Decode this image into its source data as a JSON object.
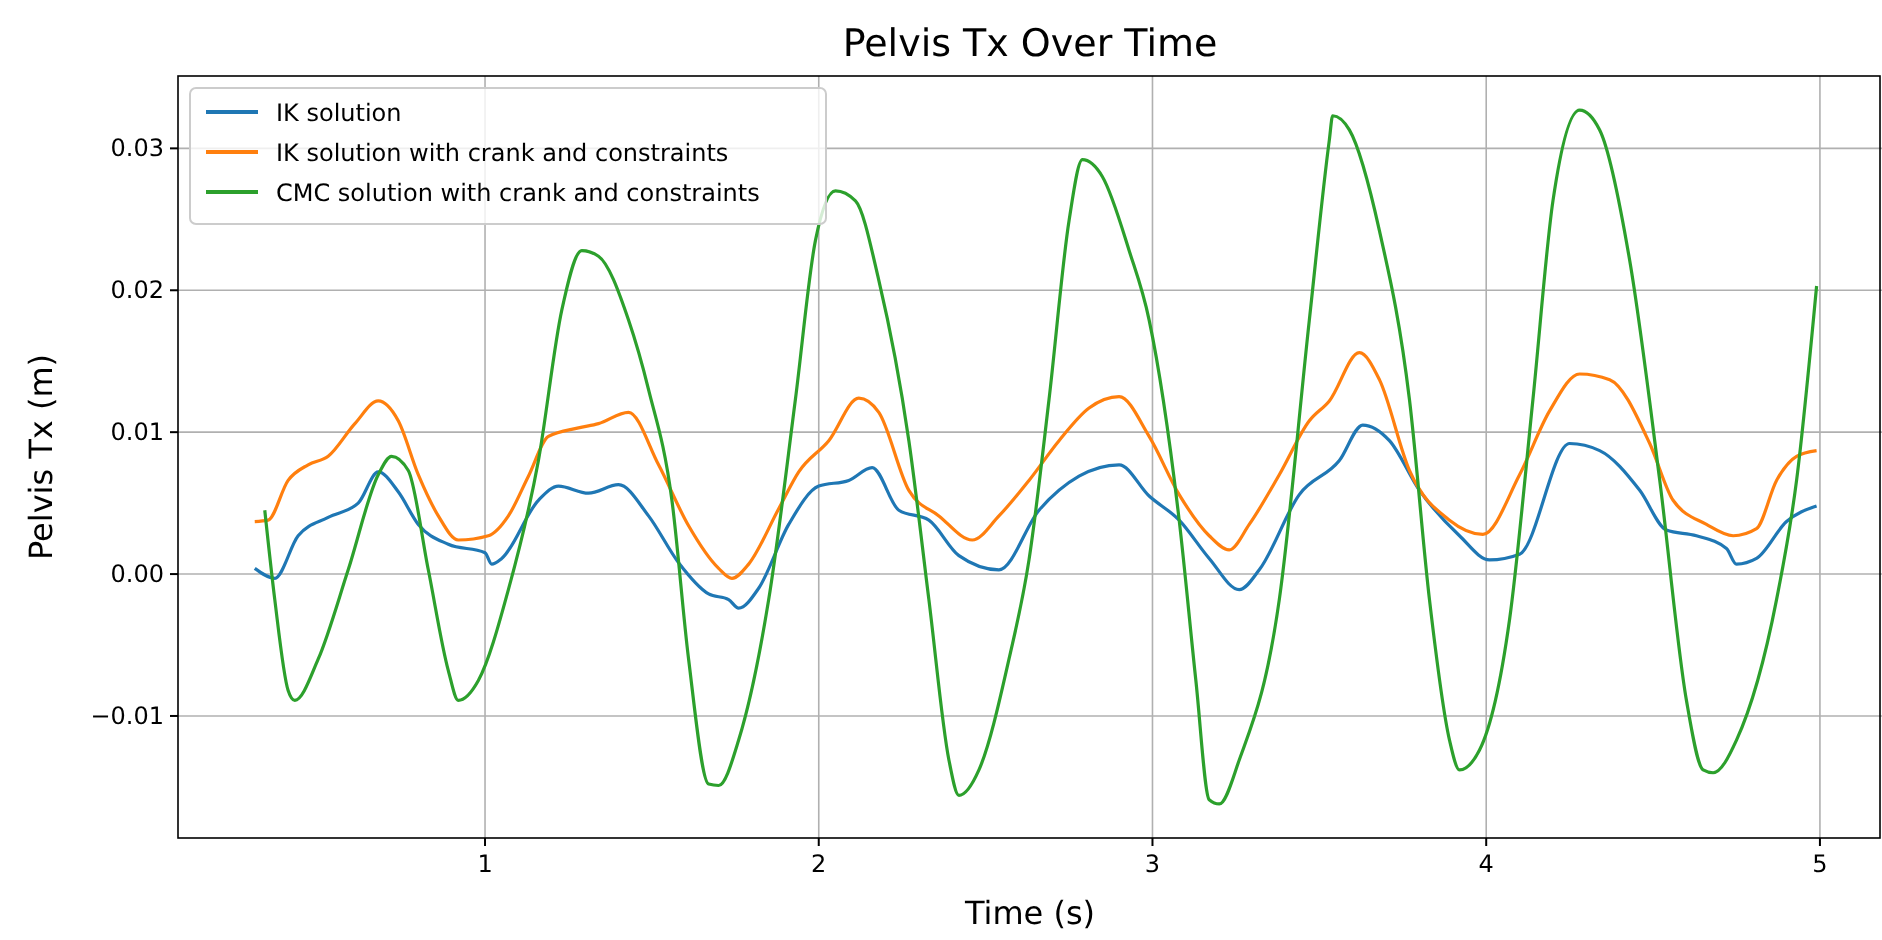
{
  "chart_data": {
    "type": "line",
    "title": "Pelvis Tx Over Time",
    "xlabel": "Time (s)",
    "ylabel": "Pelvis Tx (m)",
    "xlim": [
      0.08,
      5.18
    ],
    "ylim": [
      -0.0186,
      0.0351
    ],
    "xticks": [
      1,
      2,
      3,
      4,
      5
    ],
    "yticks": [
      {
        "value": -0.01,
        "label": "−0.01"
      },
      {
        "value": 0,
        "label": "0.00"
      },
      {
        "value": 0.01,
        "label": "0.01"
      },
      {
        "value": 0.02,
        "label": "0.02"
      },
      {
        "value": 0.03,
        "label": "0.03"
      }
    ],
    "grid": true,
    "legend": "top left",
    "line_style": "solid",
    "marker": "none",
    "series": [
      {
        "name": "IK solution",
        "color": "#1f77b4",
        "x": [
          0.31,
          0.37,
          0.44,
          0.53,
          0.62,
          0.68,
          0.74,
          0.8,
          0.89,
          1.0,
          1.02,
          1.05,
          1.16,
          1.22,
          1.31,
          1.4,
          1.49,
          1.58,
          1.67,
          1.73,
          1.76,
          1.82,
          1.91,
          2.0,
          2.09,
          2.16,
          2.24,
          2.33,
          2.42,
          2.54,
          2.66,
          2.78,
          2.9,
          2.99,
          3.08,
          3.17,
          3.26,
          3.32,
          3.44,
          3.56,
          3.63,
          3.71,
          3.8,
          3.92,
          4.01,
          4.1,
          4.25,
          4.34,
          4.46,
          4.54,
          4.63,
          4.72,
          4.75,
          4.81,
          4.9,
          4.99
        ],
        "values": [
          0.0004,
          -0.0003,
          0.0027,
          0.004,
          0.005,
          0.0072,
          0.0058,
          0.0035,
          0.0021,
          0.0015,
          0.0007,
          0.0011,
          0.0052,
          0.0062,
          0.0057,
          0.0063,
          0.0041,
          0.0008,
          -0.0014,
          -0.0018,
          -0.0024,
          -0.001,
          0.0035,
          0.0062,
          0.0066,
          0.0075,
          0.0045,
          0.0038,
          0.0013,
          0.0003,
          0.0045,
          0.0069,
          0.0077,
          0.0055,
          0.0038,
          0.0011,
          -0.0011,
          0.0003,
          0.0056,
          0.008,
          0.0105,
          0.0094,
          0.0059,
          0.0027,
          0.001,
          0.0014,
          0.0092,
          0.0087,
          0.0059,
          0.0031,
          0.0027,
          0.0018,
          0.0007,
          0.0011,
          0.0037,
          0.0048
        ]
      },
      {
        "name": "IK solution with crank and constraints",
        "color": "#ff7f0e",
        "x": [
          0.31,
          0.35,
          0.41,
          0.47,
          0.53,
          0.61,
          0.68,
          0.74,
          0.8,
          0.86,
          0.92,
          1.01,
          1.07,
          1.13,
          1.19,
          1.28,
          1.34,
          1.43,
          1.52,
          1.61,
          1.7,
          1.74,
          1.79,
          1.88,
          1.94,
          2.03,
          2.12,
          2.18,
          2.27,
          2.36,
          2.46,
          2.54,
          2.63,
          2.72,
          2.81,
          2.9,
          2.99,
          3.08,
          3.17,
          3.23,
          3.29,
          3.38,
          3.47,
          3.53,
          3.62,
          3.68,
          3.77,
          3.89,
          3.99,
          4.1,
          4.19,
          4.28,
          4.37,
          4.49,
          4.56,
          4.66,
          4.74,
          4.81,
          4.87,
          4.93,
          4.99
        ],
        "values": [
          0.0037,
          0.0038,
          0.0066,
          0.0077,
          0.0083,
          0.0106,
          0.0122,
          0.0108,
          0.007,
          0.0041,
          0.0024,
          0.0027,
          0.0041,
          0.0069,
          0.0097,
          0.0103,
          0.0106,
          0.0114,
          0.0077,
          0.0034,
          0.0004,
          -0.0003,
          0.0007,
          0.0046,
          0.0072,
          0.0094,
          0.0124,
          0.0114,
          0.0059,
          0.0041,
          0.0024,
          0.0041,
          0.0066,
          0.0094,
          0.0117,
          0.0125,
          0.0097,
          0.0056,
          0.0027,
          0.0017,
          0.0035,
          0.007,
          0.0108,
          0.0122,
          0.0156,
          0.0137,
          0.0073,
          0.0038,
          0.0028,
          0.007,
          0.0115,
          0.0141,
          0.0137,
          0.0092,
          0.0052,
          0.0035,
          0.0027,
          0.0032,
          0.0066,
          0.0083,
          0.0087
        ]
      },
      {
        "name": "CMC solution with crank and constraints",
        "color": "#2ca02c",
        "x": [
          0.34,
          0.37,
          0.41,
          0.43,
          0.5,
          0.59,
          0.68,
          0.72,
          0.77,
          0.83,
          0.89,
          0.92,
          0.98,
          1.07,
          1.16,
          1.23,
          1.29,
          1.34,
          1.43,
          1.49,
          1.56,
          1.61,
          1.67,
          1.7,
          1.76,
          1.85,
          1.93,
          1.99,
          2.05,
          2.11,
          2.18,
          2.27,
          2.33,
          2.39,
          2.42,
          2.48,
          2.57,
          2.63,
          2.69,
          2.75,
          2.79,
          2.85,
          2.93,
          2.99,
          3.08,
          3.13,
          3.17,
          3.2,
          3.26,
          3.38,
          3.47,
          3.53,
          3.54,
          3.59,
          3.68,
          3.77,
          3.83,
          3.89,
          3.92,
          3.98,
          4.07,
          4.14,
          4.2,
          4.28,
          4.34,
          4.43,
          4.52,
          4.6,
          4.65,
          4.68,
          4.75,
          4.87,
          4.93,
          4.99
        ],
        "values": [
          0.0045,
          -0.0018,
          -0.0082,
          -0.0089,
          -0.006,
          0.0003,
          0.007,
          0.0083,
          0.0073,
          0.0003,
          -0.0068,
          -0.0089,
          -0.0075,
          -0.0011,
          0.008,
          0.0186,
          0.0228,
          0.0224,
          0.0179,
          0.013,
          0.0052,
          -0.006,
          -0.0148,
          -0.0149,
          -0.0117,
          -0.0018,
          0.0123,
          0.0235,
          0.027,
          0.0263,
          0.0207,
          0.0094,
          -0.0018,
          -0.0131,
          -0.0156,
          -0.0138,
          -0.006,
          0.001,
          0.0123,
          0.0249,
          0.0292,
          0.028,
          0.0228,
          0.0179,
          0.0038,
          -0.0075,
          -0.0159,
          -0.0162,
          -0.0131,
          -0.0018,
          0.0179,
          0.0306,
          0.0323,
          0.0313,
          0.0242,
          0.0123,
          -0.0018,
          -0.0117,
          -0.0138,
          -0.0124,
          -0.0032,
          0.0123,
          0.0263,
          0.0327,
          0.0313,
          0.0221,
          0.0066,
          -0.0089,
          -0.0138,
          -0.014,
          -0.0117,
          -0.0018,
          0.0066,
          0.0203
        ]
      }
    ]
  }
}
